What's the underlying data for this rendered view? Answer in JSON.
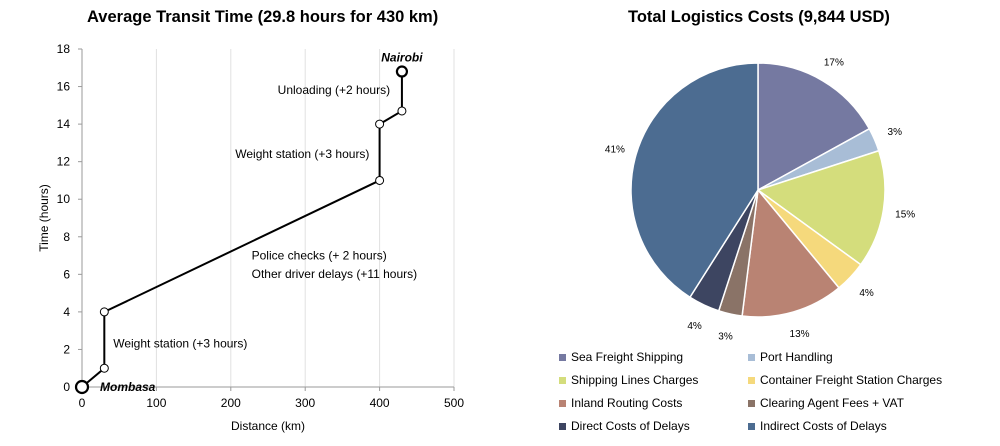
{
  "chart_data": [
    {
      "type": "line",
      "title": "Average Transit Time (29.8 hours for 430 km)",
      "xlabel": "Distance (km)",
      "ylabel": "Time (hours)",
      "xlim": [
        0,
        500
      ],
      "ylim": [
        0,
        18
      ],
      "x_ticks": [
        0,
        100,
        200,
        300,
        400,
        500
      ],
      "y_ticks": [
        0,
        2,
        4,
        6,
        8,
        10,
        12,
        14,
        16,
        18
      ],
      "grid": "vertical",
      "series": [
        {
          "points": [
            {
              "x": 0,
              "y": 0
            },
            {
              "x": 30,
              "y": 1
            },
            {
              "x": 30,
              "y": 4
            },
            {
              "x": 400,
              "y": 11
            },
            {
              "x": 400,
              "y": 14
            },
            {
              "x": 430,
              "y": 14.7
            },
            {
              "x": 430,
              "y": 16.8
            }
          ]
        }
      ],
      "point_labels": [
        {
          "text": "Mombasa",
          "point": 0
        },
        {
          "text": "Nairobi",
          "point": 6
        }
      ],
      "annotations": [
        {
          "text": "Weight station (+3 hours)",
          "x": 42,
          "y": 2.1
        },
        {
          "text": "Police checks (+ 2 hours)",
          "x": 228,
          "y": 6.8
        },
        {
          "text": "Other driver delays (+11 hours)",
          "x": 228,
          "y": 5.8
        },
        {
          "text": "Weight station (+3 hours)",
          "x": 206,
          "y": 12.2
        },
        {
          "text": "Unloading (+2 hours)",
          "x": 263,
          "y": 15.6
        }
      ],
      "line_color": "#000000"
    },
    {
      "type": "pie",
      "title": "Total Logistics Costs (9,844 USD)",
      "slices": [
        {
          "label": "Sea Freight Shipping",
          "value": 17,
          "text": "17%",
          "color": "#7579a1"
        },
        {
          "label": "Port Handling",
          "value": 3,
          "text": "3%",
          "color": "#a8bdd6"
        },
        {
          "label": "Shipping Lines Charges",
          "value": 15,
          "text": "15%",
          "color": "#d4dd7c"
        },
        {
          "label": "Container Freight Station Charges",
          "value": 4,
          "text": "4%",
          "color": "#f5d97c"
        },
        {
          "label": "Inland Routing Costs",
          "value": 13,
          "text": "13%",
          "color": "#b98373"
        },
        {
          "label": "Clearing Agent Fees + VAT",
          "value": 3,
          "text": "3%",
          "color": "#8a7367"
        },
        {
          "label": "Direct Costs of Delays",
          "value": 4,
          "text": "4%",
          "color": "#3d4561"
        },
        {
          "label": "Indirect Costs of Delays",
          "value": 41,
          "text": "41%",
          "color": "#4c6c91"
        }
      ],
      "start_angle": "top, clockwise",
      "legend_position": "bottom"
    }
  ]
}
